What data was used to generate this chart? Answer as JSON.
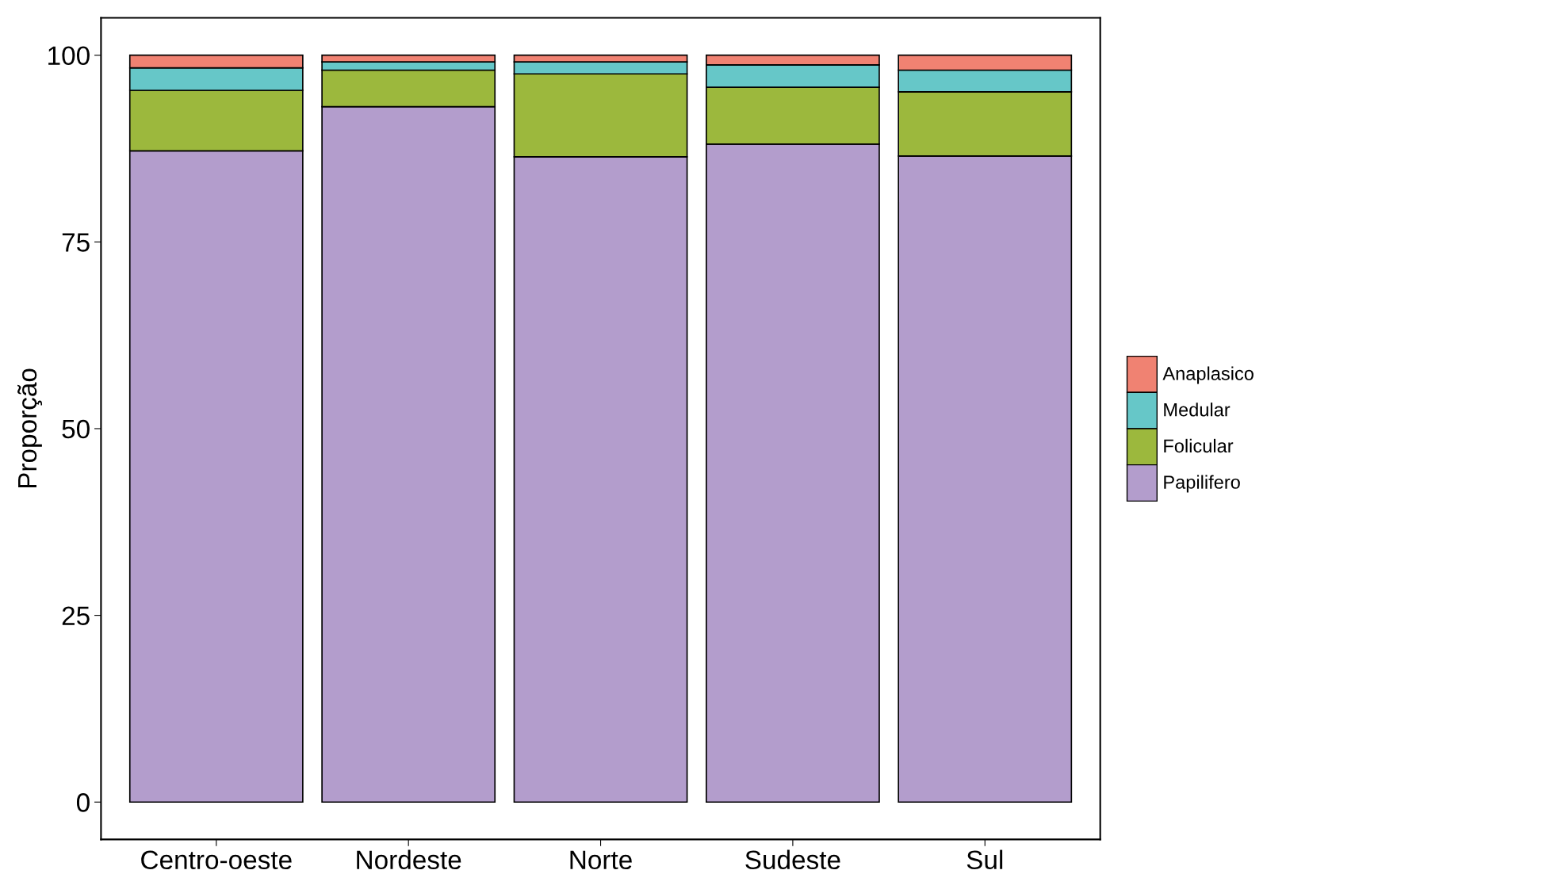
{
  "chart_data": {
    "type": "bar",
    "stacked": true,
    "ylabel": "Proporção",
    "categories": [
      "Centro-oeste",
      "Nordeste",
      "Norte",
      "Sudeste",
      "Sul"
    ],
    "series": [
      {
        "name": "Papilifero",
        "color": "#b39dcc",
        "values": [
          87.2,
          93.1,
          86.4,
          88.1,
          86.5
        ]
      },
      {
        "name": "Folicular",
        "color": "#9cb83d",
        "values": [
          8.1,
          4.9,
          11.1,
          7.6,
          8.6
        ]
      },
      {
        "name": "Medular",
        "color": "#66c7c8",
        "values": [
          3.0,
          1.1,
          1.6,
          3.0,
          2.9
        ]
      },
      {
        "name": "Anaplasico",
        "color": "#f08272",
        "values": [
          1.7,
          0.9,
          0.9,
          1.3,
          2.0
        ]
      }
    ],
    "ylim": [
      -5,
      105
    ],
    "yticks": [
      0,
      25,
      50,
      75,
      100
    ],
    "grid": false,
    "legend": "right"
  }
}
